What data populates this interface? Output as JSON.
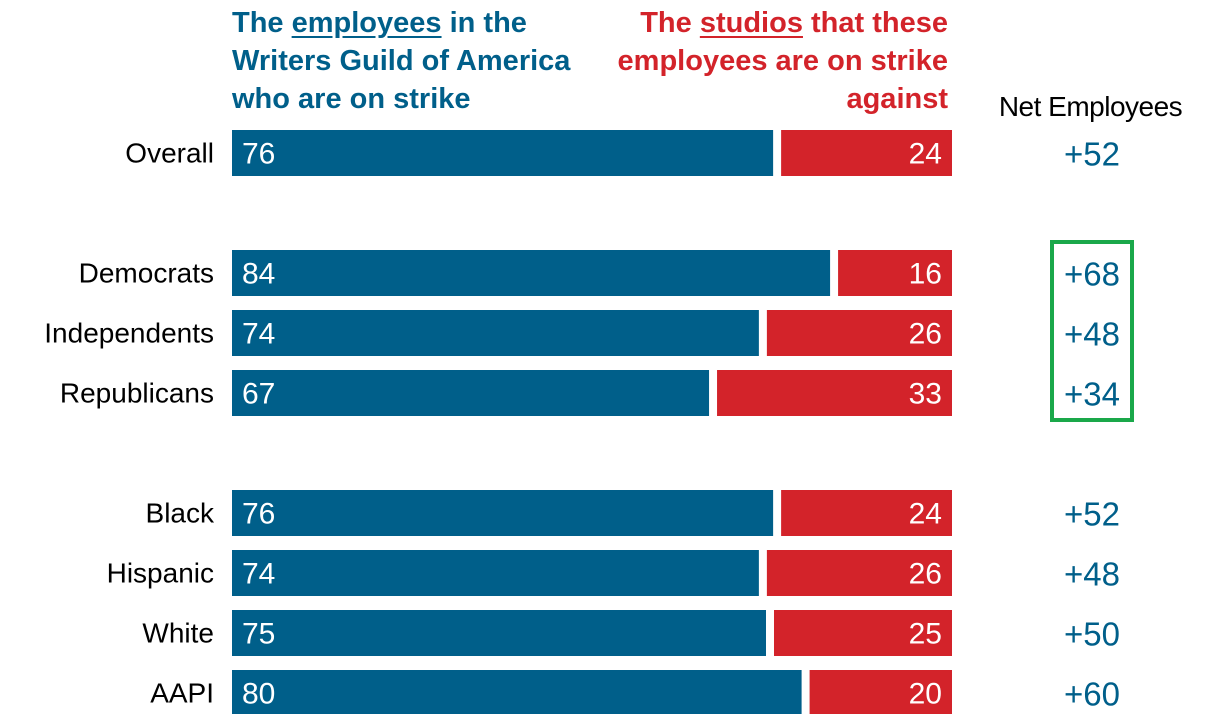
{
  "header": {
    "left_pre": "The ",
    "left_underlined": "employees",
    "left_post": " in the Writers Guild of America who are on strike",
    "right_pre": "The ",
    "right_underlined": "studios",
    "right_post": " that these employees are on strike against",
    "net_label": "Net Employees"
  },
  "colors": {
    "employees": "#005f8a",
    "studios": "#d3232a",
    "highlight_box": "#1aa84a"
  },
  "chart_data": {
    "type": "bar",
    "orientation": "horizontal",
    "stacked": true,
    "xlim": [
      0,
      100
    ],
    "categories": [
      "Overall",
      "Democrats",
      "Independents",
      "Republicans",
      "Black",
      "Hispanic",
      "White",
      "AAPI"
    ],
    "groups": [
      [
        "Overall"
      ],
      [
        "Democrats",
        "Independents",
        "Republicans"
      ],
      [
        "Black",
        "Hispanic",
        "White",
        "AAPI"
      ]
    ],
    "series": [
      {
        "name": "The employees in the Writers Guild of America who are on strike",
        "values": [
          76,
          84,
          74,
          67,
          76,
          74,
          75,
          80
        ]
      },
      {
        "name": "The studios that these employees are on strike against",
        "values": [
          24,
          16,
          26,
          33,
          24,
          26,
          25,
          20
        ]
      }
    ],
    "net_labels": [
      "+52",
      "+68",
      "+48",
      "+34",
      "+52",
      "+48",
      "+50",
      "+60"
    ],
    "highlighted": [
      "Democrats",
      "Independents",
      "Republicans"
    ]
  }
}
